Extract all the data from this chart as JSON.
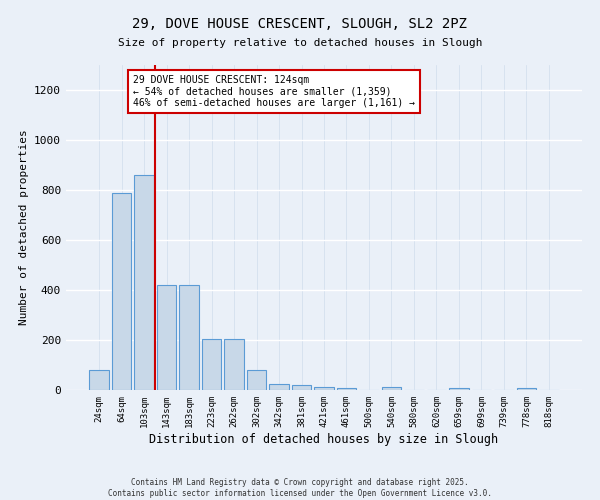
{
  "title_line1": "29, DOVE HOUSE CRESCENT, SLOUGH, SL2 2PZ",
  "title_line2": "Size of property relative to detached houses in Slough",
  "xlabel": "Distribution of detached houses by size in Slough",
  "ylabel": "Number of detached properties",
  "bar_color": "#c8d8e8",
  "bar_edge_color": "#5b9bd5",
  "background_color": "#eaf0f8",
  "grid_color": "#d8e4f0",
  "annotation_box_color": "#cc0000",
  "red_line_color": "#cc0000",
  "categories": [
    "24sqm",
    "64sqm",
    "103sqm",
    "143sqm",
    "183sqm",
    "223sqm",
    "262sqm",
    "302sqm",
    "342sqm",
    "381sqm",
    "421sqm",
    "461sqm",
    "500sqm",
    "540sqm",
    "580sqm",
    "620sqm",
    "659sqm",
    "699sqm",
    "739sqm",
    "778sqm",
    "818sqm"
  ],
  "values": [
    80,
    790,
    860,
    420,
    420,
    205,
    205,
    80,
    25,
    20,
    12,
    10,
    0,
    12,
    0,
    0,
    10,
    0,
    0,
    10,
    0
  ],
  "ylim": [
    0,
    1300
  ],
  "yticks": [
    0,
    200,
    400,
    600,
    800,
    1000,
    1200
  ],
  "red_line_x": 2.5,
  "annotation_text": "29 DOVE HOUSE CRESCENT: 124sqm\n← 54% of detached houses are smaller (1,359)\n46% of semi-detached houses are larger (1,161) →",
  "footer_line1": "Contains HM Land Registry data © Crown copyright and database right 2025.",
  "footer_line2": "Contains public sector information licensed under the Open Government Licence v3.0."
}
